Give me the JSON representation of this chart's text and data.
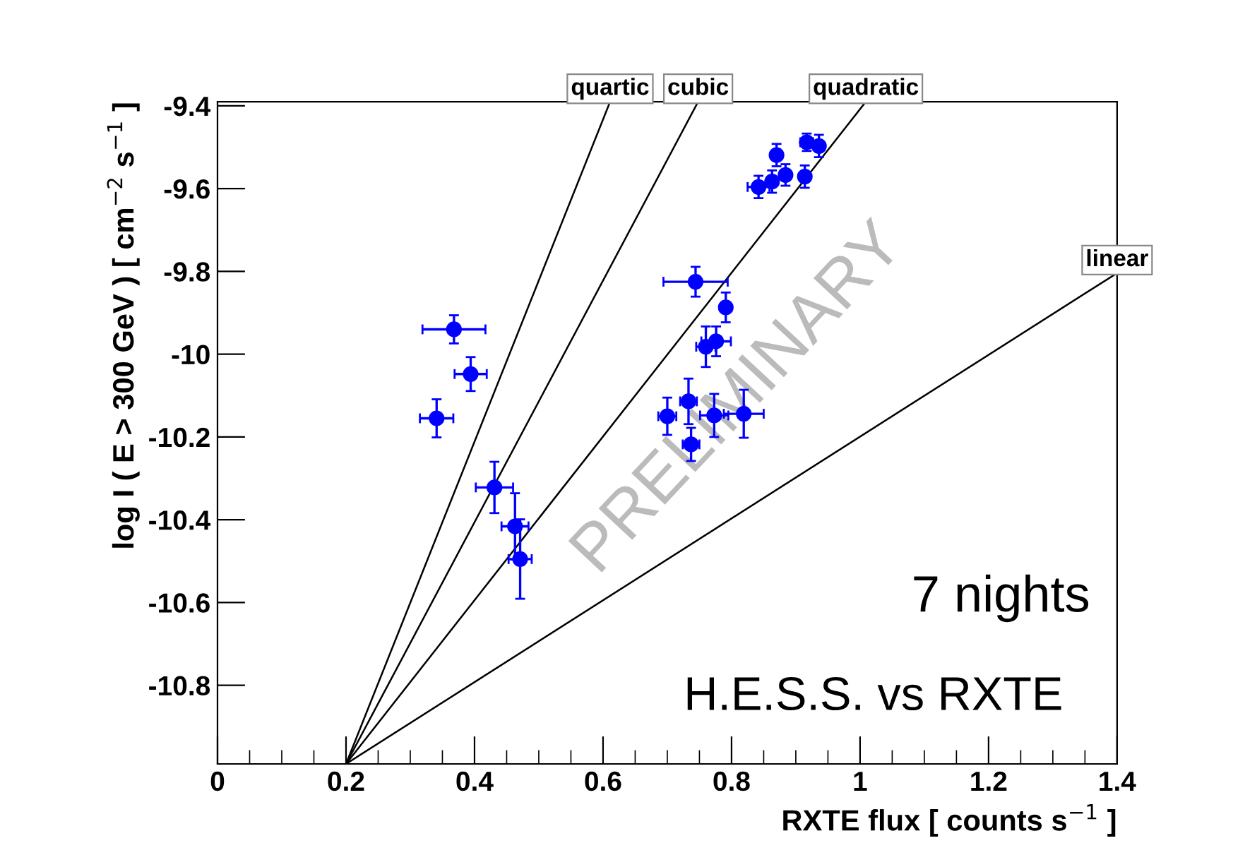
{
  "chart_data": {
    "type": "scatter",
    "xlabel": "RXTE flux [ counts s$^{−1}$ ]",
    "ylabel": "log I ( E > 300 GeV ) [ cm$^{−2}$ s$^{−1}$ ]",
    "annotations": [
      "PRELIMINARY",
      "7 nights",
      "H.E.S.S. vs RXTE"
    ],
    "xlim": [
      0,
      1.4
    ],
    "xticks": [
      0,
      0.2,
      0.4,
      0.6,
      0.8,
      1,
      1.2,
      1.4
    ],
    "ylim": [
      -10.99,
      -9.39
    ],
    "yticks": [
      -10.8,
      -10.6,
      -10.4,
      -10.2,
      -10,
      -9.8,
      -9.6,
      -9.4
    ],
    "grid": false,
    "series": [
      {
        "marker": "circle",
        "color": "#0000ff",
        "x": [
          0.368,
          0.394,
          0.341,
          0.431,
          0.463,
          0.471,
          0.744,
          0.791,
          0.776,
          0.76,
          0.733,
          0.7,
          0.773,
          0.819,
          0.737,
          0.842,
          0.863,
          0.87,
          0.884,
          0.914,
          0.917,
          0.936
        ],
        "values": [
          -9.94,
          -10.048,
          -10.155,
          -10.322,
          -10.416,
          -10.495,
          -9.825,
          -9.887,
          -9.969,
          -9.982,
          -10.114,
          -10.15,
          -10.148,
          -10.144,
          -10.218,
          -9.596,
          -9.583,
          -9.519,
          -9.567,
          -9.571,
          -9.488,
          -9.497
        ],
        "errors": [
          0.034,
          0.041,
          0.046,
          0.062,
          0.08,
          0.096,
          0.036,
          0.036,
          0.036,
          0.049,
          0.055,
          0.045,
          0.052,
          0.058,
          0.04,
          0.027,
          0.027,
          0.027,
          0.026,
          0.027,
          0.021,
          0.027
        ],
        "xerrors": [
          0.049,
          0.025,
          0.026,
          0.029,
          0.021,
          0.018,
          0.05,
          0.005,
          0.023,
          0.015,
          0.013,
          0.014,
          0.022,
          0.031,
          0.013,
          0.017,
          0.008,
          0.008,
          0.008,
          0.008,
          0.01,
          0.008
        ]
      },
      {
        "type": "line",
        "name": "quartic",
        "color": "#000000",
        "x": [
          0.2,
          0.611
        ],
        "values": [
          -10.99,
          -9.39
        ]
      },
      {
        "type": "line",
        "name": "cubic",
        "color": "#000000",
        "x": [
          0.2,
          0.748
        ],
        "values": [
          -10.99,
          -9.39
        ]
      },
      {
        "type": "line",
        "name": "quadratic",
        "color": "#000000",
        "x": [
          0.2,
          1.009
        ],
        "values": [
          -10.99,
          -9.39
        ]
      },
      {
        "type": "line",
        "name": "linear",
        "color": "#000000",
        "x": [
          0.2,
          1.4
        ],
        "values": [
          -10.99,
          -9.804
        ]
      }
    ]
  }
}
